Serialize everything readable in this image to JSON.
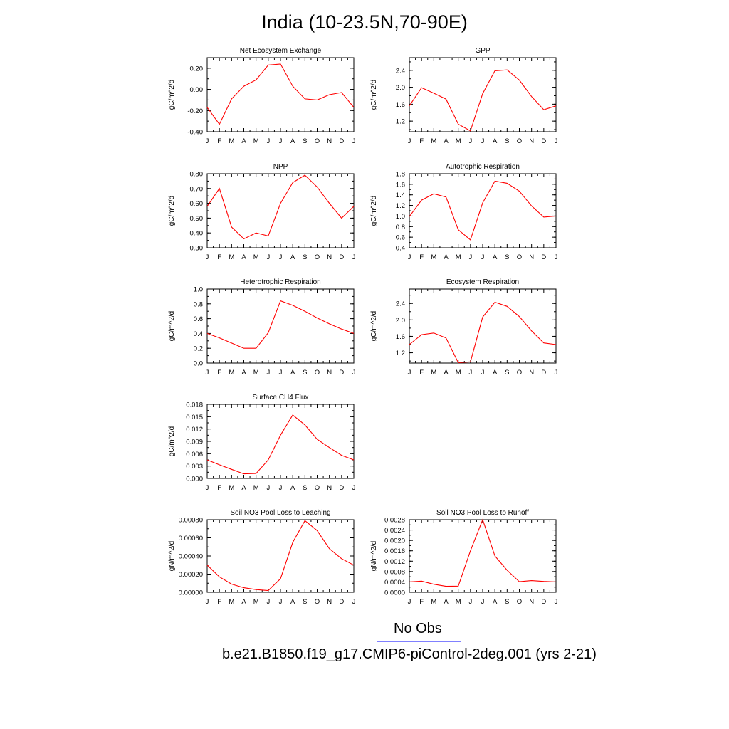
{
  "page_title": "India (10-23.5N,70-90E)",
  "legend": {
    "obs_label": "No Obs",
    "obs_color": "#8080ff",
    "model_label": "b.e21.B1850.f19_g17.CMIP6-piControl-2deg.001 (yrs 2-21)",
    "model_color": "#ff0000"
  },
  "chart_data": [
    {
      "type": "line",
      "title": "Net Ecosystem Exchange",
      "ylabel": "gC/m^2/d",
      "xlabel": "",
      "categories": [
        "J",
        "F",
        "M",
        "A",
        "M",
        "J",
        "J",
        "A",
        "S",
        "O",
        "N",
        "D",
        "J"
      ],
      "ylim": [
        -0.4,
        0.3
      ],
      "yticks": [
        -0.4,
        -0.2,
        0.0,
        0.2
      ],
      "ytick_labels": [
        "-0.40",
        "-0.20",
        "0.00",
        "0.20"
      ],
      "series": [
        {
          "values": [
            -0.17,
            -0.33,
            -0.09,
            0.03,
            0.09,
            0.23,
            0.24,
            0.03,
            -0.09,
            -0.1,
            -0.05,
            -0.03,
            -0.17
          ]
        }
      ]
    },
    {
      "type": "line",
      "title": "GPP",
      "ylabel": "gC/m^2/d",
      "xlabel": "",
      "categories": [
        "J",
        "F",
        "M",
        "A",
        "M",
        "J",
        "J",
        "A",
        "S",
        "O",
        "N",
        "D",
        "J"
      ],
      "ylim": [
        0.95,
        2.7
      ],
      "yticks": [
        1.2,
        1.6,
        2.0,
        2.4
      ],
      "ytick_labels": [
        "1.2",
        "1.6",
        "2.0",
        "2.4"
      ],
      "series": [
        {
          "values": [
            1.56,
            1.99,
            1.86,
            1.72,
            1.13,
            0.97,
            1.85,
            2.39,
            2.41,
            2.17,
            1.78,
            1.47,
            1.56
          ]
        }
      ]
    },
    {
      "type": "line",
      "title": "NPP",
      "ylabel": "gC/m^2/d",
      "xlabel": "",
      "categories": [
        "J",
        "F",
        "M",
        "A",
        "M",
        "J",
        "J",
        "A",
        "S",
        "O",
        "N",
        "D",
        "J"
      ],
      "ylim": [
        0.3,
        0.8
      ],
      "yticks": [
        0.3,
        0.4,
        0.5,
        0.6,
        0.7,
        0.8
      ],
      "ytick_labels": [
        "0.30",
        "0.40",
        "0.50",
        "0.60",
        "0.70",
        "0.80"
      ],
      "series": [
        {
          "values": [
            0.58,
            0.7,
            0.44,
            0.36,
            0.4,
            0.38,
            0.6,
            0.74,
            0.79,
            0.71,
            0.6,
            0.5,
            0.58
          ]
        }
      ]
    },
    {
      "type": "line",
      "title": "Autotrophic Respiration",
      "ylabel": "gC/m^2/d",
      "xlabel": "",
      "categories": [
        "J",
        "F",
        "M",
        "A",
        "M",
        "J",
        "J",
        "A",
        "S",
        "O",
        "N",
        "D",
        "J"
      ],
      "ylim": [
        0.4,
        1.8
      ],
      "yticks": [
        0.4,
        0.6,
        0.8,
        1.0,
        1.2,
        1.4,
        1.6,
        1.8
      ],
      "ytick_labels": [
        "0.4",
        "0.6",
        "0.8",
        "1.0",
        "1.2",
        "1.4",
        "1.6",
        "1.8"
      ],
      "series": [
        {
          "values": [
            0.99,
            1.3,
            1.42,
            1.36,
            0.74,
            0.55,
            1.25,
            1.66,
            1.62,
            1.47,
            1.19,
            0.98,
            1.0
          ]
        }
      ]
    },
    {
      "type": "line",
      "title": "Heterotrophic Respiration",
      "ylabel": "gC/m^2/d",
      "xlabel": "",
      "categories": [
        "J",
        "F",
        "M",
        "A",
        "M",
        "J",
        "J",
        "A",
        "S",
        "O",
        "N",
        "D",
        "J"
      ],
      "ylim": [
        0.0,
        1.0
      ],
      "yticks": [
        0.0,
        0.2,
        0.4,
        0.6,
        0.8,
        1.0
      ],
      "ytick_labels": [
        "0.0",
        "0.2",
        "0.4",
        "0.6",
        "0.8",
        "1.0"
      ],
      "series": [
        {
          "values": [
            0.4,
            0.34,
            0.27,
            0.2,
            0.2,
            0.41,
            0.84,
            0.78,
            0.7,
            0.61,
            0.53,
            0.46,
            0.4
          ]
        }
      ]
    },
    {
      "type": "line",
      "title": "Ecosystem Respiration",
      "ylabel": "gC/m^2/d",
      "xlabel": "",
      "categories": [
        "J",
        "F",
        "M",
        "A",
        "M",
        "J",
        "J",
        "A",
        "S",
        "O",
        "N",
        "D",
        "J"
      ],
      "ylim": [
        0.95,
        2.75
      ],
      "yticks": [
        1.2,
        1.6,
        2.0,
        2.4
      ],
      "ytick_labels": [
        "1.2",
        "1.6",
        "2.0",
        "2.4"
      ],
      "series": [
        {
          "values": [
            1.4,
            1.64,
            1.68,
            1.56,
            0.96,
            0.98,
            2.07,
            2.43,
            2.33,
            2.08,
            1.73,
            1.44,
            1.4
          ]
        }
      ]
    },
    {
      "type": "line",
      "title": "Surface CH4 Flux",
      "ylabel": "gC/m^2/d",
      "xlabel": "",
      "categories": [
        "J",
        "F",
        "M",
        "A",
        "M",
        "J",
        "J",
        "A",
        "S",
        "O",
        "N",
        "D",
        "J"
      ],
      "ylim": [
        0.0,
        0.018
      ],
      "yticks": [
        0.0,
        0.003,
        0.006,
        0.009,
        0.012,
        0.015,
        0.018
      ],
      "ytick_labels": [
        "0.000",
        "0.003",
        "0.006",
        "0.009",
        "0.012",
        "0.015",
        "0.018"
      ],
      "series": [
        {
          "values": [
            0.0045,
            0.0033,
            0.0022,
            0.0011,
            0.0012,
            0.0045,
            0.0105,
            0.0154,
            0.013,
            0.0095,
            0.0075,
            0.0056,
            0.0045
          ]
        }
      ]
    },
    {
      "type": "line",
      "title": "Soil NO3 Pool Loss to Leaching",
      "ylabel": "gN/m^2/d",
      "xlabel": "",
      "categories": [
        "J",
        "F",
        "M",
        "A",
        "M",
        "J",
        "J",
        "A",
        "S",
        "O",
        "N",
        "D",
        "J"
      ],
      "ylim": [
        0.0,
        0.0008
      ],
      "yticks": [
        0.0,
        0.0002,
        0.0004,
        0.0006,
        0.0008
      ],
      "ytick_labels": [
        "0.00000",
        "0.00020",
        "0.00040",
        "0.00060",
        "0.00080"
      ],
      "series": [
        {
          "values": [
            0.0003,
            0.00017,
            9e-05,
            5e-05,
            3e-05,
            2e-05,
            0.00015,
            0.00055,
            0.00079,
            0.00068,
            0.00048,
            0.00037,
            0.0003
          ]
        }
      ]
    },
    {
      "type": "line",
      "title": "Soil NO3 Pool Loss to Runoff",
      "ylabel": "gN/m^2/d",
      "xlabel": "",
      "categories": [
        "J",
        "F",
        "M",
        "A",
        "M",
        "J",
        "J",
        "A",
        "S",
        "O",
        "N",
        "D",
        "J"
      ],
      "ylim": [
        0.0,
        0.0028
      ],
      "yticks": [
        0.0,
        0.0004,
        0.0008,
        0.0012,
        0.0016,
        0.002,
        0.0024,
        0.0028
      ],
      "ytick_labels": [
        "0.0000",
        "0.0004",
        "0.0008",
        "0.0012",
        "0.0016",
        "0.0020",
        "0.0024",
        "0.0028"
      ],
      "series": [
        {
          "values": [
            0.0004,
            0.00043,
            0.00031,
            0.00023,
            0.00024,
            0.0016,
            0.0028,
            0.0014,
            0.00085,
            0.00041,
            0.00045,
            0.00042,
            0.0004
          ]
        }
      ]
    }
  ]
}
